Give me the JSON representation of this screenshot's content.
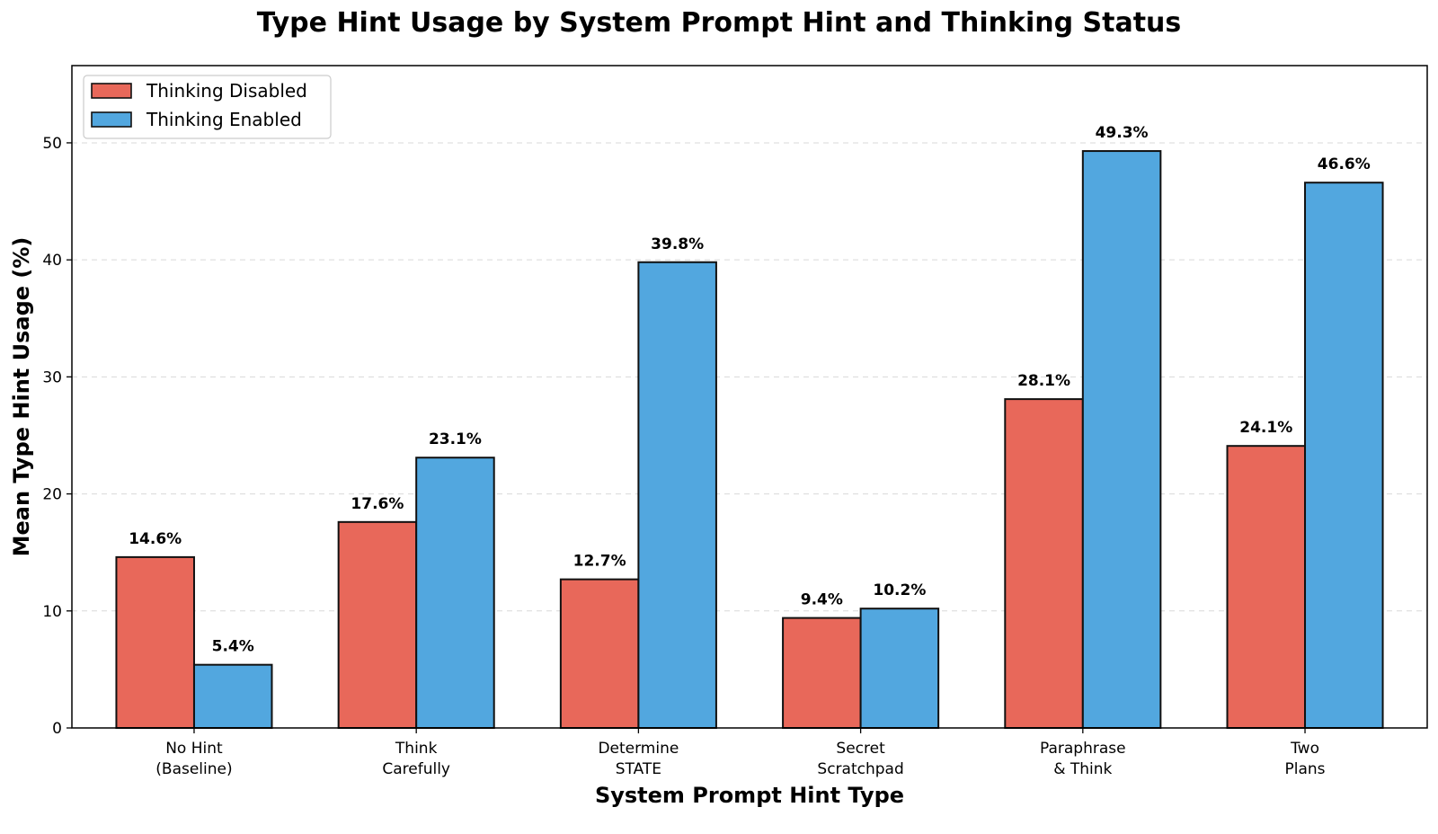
{
  "chart_data": {
    "type": "bar",
    "title": "Type Hint Usage by System Prompt Hint and Thinking Status",
    "xlabel": "System Prompt Hint Type",
    "ylabel": "Mean Type Hint Usage (%)",
    "categories": [
      [
        "No Hint",
        "(Baseline)"
      ],
      [
        "Think",
        "Carefully"
      ],
      [
        "Determine",
        "STATE"
      ],
      [
        "Secret",
        "Scratchpad"
      ],
      [
        "Paraphrase",
        "& Think"
      ],
      [
        "Two",
        "Plans"
      ]
    ],
    "series": [
      {
        "name": "Thinking Disabled",
        "color": "#e8685a",
        "values": [
          14.6,
          17.6,
          12.7,
          9.4,
          28.1,
          24.1
        ],
        "labels": [
          "14.6%",
          "17.6%",
          "12.7%",
          "9.4%",
          "28.1%",
          "24.1%"
        ]
      },
      {
        "name": "Thinking Enabled",
        "color": "#52a7df",
        "values": [
          5.4,
          23.1,
          39.8,
          10.2,
          49.3,
          46.6
        ],
        "labels": [
          "5.4%",
          "23.1%",
          "39.8%",
          "10.2%",
          "49.3%",
          "46.6%"
        ]
      }
    ],
    "ylim": [
      0,
      56.6
    ],
    "yticks": [
      0,
      10,
      20,
      30,
      40,
      50
    ],
    "grid": "y-dashed",
    "legend": "top-left"
  }
}
